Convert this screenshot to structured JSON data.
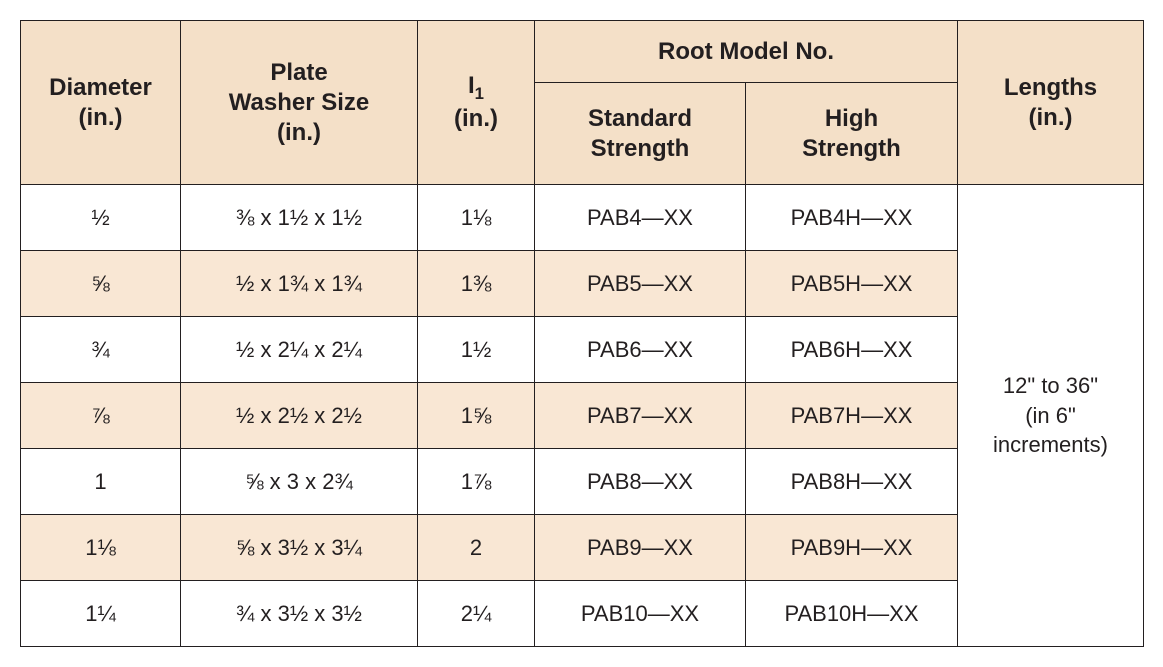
{
  "header": {
    "diameter": "Diameter\n(in.)",
    "plate": "Plate\nWasher Size\n(in.)",
    "i1_pre": "I",
    "i1_sub": "1",
    "i1_post": "\n(in.)",
    "root": "Root Model No.",
    "std": "Standard\nStrength",
    "high": "High\nStrength",
    "lengths": "Lengths\n(in.)"
  },
  "rows": [
    {
      "dia": "½",
      "plate": "⅜ x 1½ x 1½",
      "i1": "1⅛",
      "std": "PAB4—XX",
      "high": "PAB4H—XX"
    },
    {
      "dia": "⅝",
      "plate": "½ x 1¾ x 1¾",
      "i1": "1⅜",
      "std": "PAB5—XX",
      "high": "PAB5H—XX"
    },
    {
      "dia": "¾",
      "plate": "½ x 2¼ x 2¼",
      "i1": "1½",
      "std": "PAB6—XX",
      "high": "PAB6H—XX"
    },
    {
      "dia": "⅞",
      "plate": "½ x 2½ x 2½",
      "i1": "1⅝",
      "std": "PAB7—XX",
      "high": "PAB7H—XX"
    },
    {
      "dia": "1",
      "plate": "⅝ x 3 x 2¾",
      "i1": "1⅞",
      "std": "PAB8—XX",
      "high": "PAB8H—XX"
    },
    {
      "dia": "1⅛",
      "plate": "⅝ x 3½ x 3¼",
      "i1": "2",
      "std": "PAB9—XX",
      "high": "PAB9H—XX"
    },
    {
      "dia": "1¼",
      "plate": "¾ x 3½ x 3½",
      "i1": "2¼",
      "std": "PAB10—XX",
      "high": "PAB10H—XX"
    }
  ],
  "lengths_cell": "12\" to 36\"\n(in 6\"\nincrements)",
  "zebra": [
    false,
    true,
    false,
    true,
    false,
    true,
    false
  ]
}
